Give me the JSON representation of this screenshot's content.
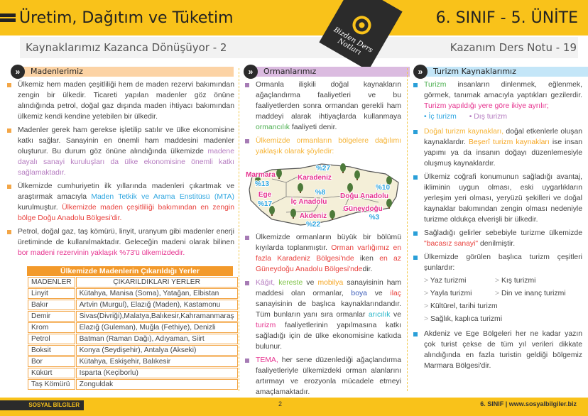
{
  "header": {
    "title": "Üretim, Dağıtım ve Tüketim",
    "unit": "6. SINIF - 5. ÜNİTE",
    "subtitle": "Kaynaklarımız Kazanca Dönüşüyor - 2",
    "note_no": "Kazanım Ders Notu - 19",
    "badge": [
      "Bizden Ders",
      "Notları"
    ]
  },
  "colors": {
    "yellow": "#f9c21a",
    "orange": "#f3a647",
    "purple": "#a67bb5",
    "blue": "#2a9fd8"
  },
  "sections": [
    {
      "icon": "»",
      "title": "Madenlerimiz",
      "bg": "#fcd3a5"
    },
    {
      "icon": "»",
      "title": "Ormanlarımız",
      "bg": "#dbbbe0"
    },
    {
      "icon": "»",
      "title": "Turizm Kaynaklarımız",
      "bg": "#c4e6f8"
    }
  ],
  "left": {
    "bullets": [
      [
        {
          "t": "Ülkemiz hem maden çeşitliliği hem de maden rezervi bakımından zengin bir ülkedir. Ticareti yapılan madenler göz önüne alındığında petrol, doğal gaz dışında maden ihtiyacı bakımından ülkemiz kendi kendine yetebilen bir ülkedir."
        }
      ],
      [
        {
          "t": "Madenler gerek ham gerekse işletilip satılır ve ülke ekonomisine katkı sağlar. Sanayinin en önemli ham maddesini madenler oluşturur. Bu durum göz önüne alındığında ülkemizde "
        },
        {
          "t": "madene dayalı sanayi kuruluşları da ülke ekonomisine önemli katkı sağlamaktadır.",
          "c": "#b57cc0"
        }
      ],
      [
        {
          "t": "Ülkemizde cumhuriyetin ilk yıllarında madenleri çıkartmak ve araştırmak amacıyla "
        },
        {
          "t": "Maden Tetkik ve Arama Enstitüsü (MTA)",
          "c": "#2fa6e0"
        },
        {
          "t": " kurulmuştur. "
        },
        {
          "t": "Ülkemizde maden çeşitliliği bakımından en zengin bölge Doğu Anadolu Bölgesi'dir.",
          "c": "#e8403c"
        }
      ],
      [
        {
          "t": "Petrol, doğal gaz, taş kömürü, linyit, uranyum gibi madenler enerji üretiminde de kullanılmaktadır. Geleceğin madeni olarak bilinen "
        },
        {
          "t": "bor madeni rezervinin yaklaşık %73'ü ülkemizdedir.",
          "c": "#e6338f"
        }
      ]
    ],
    "table": {
      "title": "Ülkemizde Madenlerin Çıkarıldığı Yerler",
      "headers": [
        "MADENLER",
        "ÇIKARILDIKLARI YERLER"
      ],
      "rows": [
        [
          "Linyit",
          "Kütahya, Manisa (Soma), Yatağan, Elbistan"
        ],
        [
          "Bakır",
          "Artvin (Murgul), Elazığ (Maden), Kastamonu"
        ],
        [
          "Demir",
          "Sivas(Divriği),Malatya,Balıkesir,Kahramanmaraş"
        ],
        [
          "Krom",
          "Elazığ (Guleman), Muğla (Fethiye), Denizli"
        ],
        [
          "Petrol",
          "Batman (Raman Dağı), Adıyaman, Siirt"
        ],
        [
          "Boksit",
          "Konya (Seydişehir), Antalya (Akseki)"
        ],
        [
          "Bor",
          "Kütahya, Eskişehir, Balıkesir"
        ],
        [
          "Kükürt",
          "Isparta (Keçiborlu)"
        ],
        [
          "Taş Kömürü",
          "Zonguldak"
        ]
      ]
    }
  },
  "middle": {
    "bullets_top": [
      [
        {
          "t": "Ormanla ilişkili doğal kaynakların ağaçlandırma faaliyetleri ve bu faaliyetlerden sonra ormandan gerekli ham maddeyi alarak ihtiyaçlarda kullanmaya "
        },
        {
          "t": "ormancılık",
          "c": "#4caf50"
        },
        {
          "t": " faaliyeti denir."
        }
      ],
      [
        {
          "t": "Ülkemizde ormanların bölgelere dağılımı yaklaşık olarak şöyledir:",
          "c": "#f5b335"
        }
      ]
    ],
    "map": [
      {
        "region": "Marmara",
        "pct": "%13"
      },
      {
        "region": "Karadeniz",
        "pct": "%27"
      },
      {
        "region": "Ege",
        "pct": "%17"
      },
      {
        "region": "İç Anadolu",
        "pct": "%8"
      },
      {
        "region": "Doğu Anadolu",
        "pct": "%10"
      },
      {
        "region": "Akdeniz",
        "pct": "%22"
      },
      {
        "region": "Güneydoğu",
        "pct": "%3"
      }
    ],
    "bullets_bottom": [
      [
        {
          "t": "Ülkemizde ormanların büyük bir bölümü kıyılarda toplanmıştır. "
        },
        {
          "t": "Orman varlığımız en fazla Karadeniz Bölgesi'nde",
          "c": "#e8403c"
        },
        {
          "t": "  iken "
        },
        {
          "t": "en az Güneydoğu Anadolu Bölgesi'nde",
          "c": "#e8403c"
        },
        {
          "t": "dir."
        }
      ],
      [
        {
          "t": "Kâğıt,",
          "c": "#b57cc0"
        },
        {
          "t": " "
        },
        {
          "t": "kereste",
          "c": "#7cc242"
        },
        {
          "t": " ve "
        },
        {
          "t": "mobilya",
          "c": "#f5a623"
        },
        {
          "t": " sanayisinin ham maddesi olan ormanlar, "
        },
        {
          "t": "boya",
          "c": "#3a5bb8"
        },
        {
          "t": " ve "
        },
        {
          "t": "ilaç",
          "c": "#e8403c"
        },
        {
          "t": " sanayisinin de başlıca kaynaklarındandır. Tüm bunların yanı sıra ormanlar "
        },
        {
          "t": "arıcılık",
          "c": "#26b5c8"
        },
        {
          "t": " ve "
        },
        {
          "t": "turizm",
          "c": "#e6338f"
        },
        {
          "t": " faaliyetlerinin yapılmasına katkı sağladığı için de ülke ekonomisine katkıda bulunur."
        }
      ],
      [
        {
          "t": "TEMA,",
          "c": "#e6338f"
        },
        {
          "t": " her sene düzenlediği ağaçlandırma faaliyetleriyle ülkemizdeki orman alanlarını artırmayı ve erozyonla mücadele etmeyi amaçlamaktadır."
        }
      ]
    ]
  },
  "right": {
    "b1": [
      {
        "t": "Turizm",
        "c": "#4caf50"
      },
      {
        "t": " insanların dinlenmek, eğlenmek, görmek, tanımak amacıyla yaptıkları gezilerdir. "
      },
      {
        "t": "Turizm yapıldığı yere göre ikiye ayrılır;",
        "c": "#e6338f"
      }
    ],
    "types": [
      {
        "t": "• İç turizm",
        "c": "#2fa6e0"
      },
      {
        "t": "• Dış turizm",
        "c": "#b57cc0"
      }
    ],
    "bullets": [
      [
        {
          "t": "Doğal turizm kaynakları,",
          "c": "#f5b335"
        },
        {
          "t": " doğal etkenlerle oluşan kaynaklardır. "
        },
        {
          "t": "Beşerî turizm kaynakları",
          "c": "#f5a623"
        },
        {
          "t": " ise insan yapımı ya da insanın doğayı düzenlemesiyle oluşmuş kaynaklardır."
        }
      ],
      [
        {
          "t": "Ülkemiz coğrafi konumunun sağladığı avantaj, ikliminin uygun olması, eski uygarlıkların yerleşim yeri olması, yeryüzü şekilleri ve doğal kaynaklar bakımından zengin olması nedeniyle turizme oldukça elverişli bir ülkedir."
        }
      ],
      [
        {
          "t": "Sağladığı gelirler sebebiyle turizme ülkemizde "
        },
        {
          "t": "\"bacasız sanayi\"",
          "c": "#e8403c"
        },
        {
          "t": " denilmiştir."
        }
      ],
      [
        {
          "t": "Ülkemizde görülen başlıca turizm çeşitleri şunlardır:"
        }
      ]
    ],
    "kinds": [
      "Yaz turizmi",
      "Kış turizmi",
      "Yayla turizmi",
      "Din ve inanç turizmi",
      "Kültürel, tarihi turizm",
      "Sağlık, kaplıca turizmi"
    ],
    "last": [
      {
        "t": "Akdeniz ve Ege Bölgeleri her ne kadar yazın çok turist çekse de tüm yıl verileri dikkate alındığında en fazla turistin geldiği bölgemiz Marmara Bölgesi'dir."
      }
    ]
  },
  "footer": {
    "subject": "SOSYAL BİLGİLER",
    "page": "2",
    "site": "6. SINIF  |  www.sosyalbilgiler.biz"
  }
}
